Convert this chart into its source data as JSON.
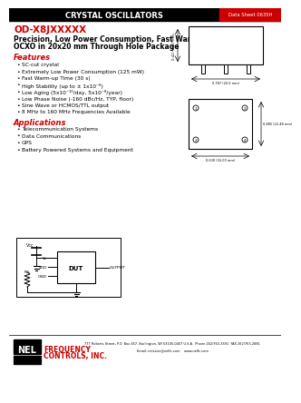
{
  "header_text": "CRYSTAL OSCILLATORS",
  "datasheet_num": "Data Sheet 0635H",
  "header_bg": "#000000",
  "header_red_bg": "#cc0000",
  "part_number": "OD-X8JXXXXX",
  "subtitle_line1": "Precision, Low Power Consumption, Fast Warm-up SC-cut",
  "subtitle_line2": "OCXO in 20x20 mm Through Hole Package",
  "features_title": "Features",
  "features": [
    "SC-cut crystal",
    "Extremely Low Power Consumption (125 mW)",
    "Fast Warm-up Time (30 s)",
    "High Stability (up to ± 1x10⁻⁸)",
    "Low Aging (5x10⁻¹⁰/day, 5x10⁻⁸/year)",
    "Low Phase Noise (-160 dBc/Hz, TYP, floor)",
    "Sine Wave or HCMOS/TTL output",
    "8 MHz to 160 MHz Frequencies Available"
  ],
  "applications_title": "Applications",
  "applications": [
    "Telecommunication Systems",
    "Data Communications",
    "GPS",
    "Battery Powered Systems and Equipment"
  ],
  "company_name_line1": "FREQUENCY",
  "company_name_line2": "CONTROLS, INC.",
  "footer_address": "777 Roberts Street, P.O. Box 457, Burlington, WI 53105-0457 U.S.A.  Phone 262/763-3591  FAX 262/763-2881",
  "footer_email": "Email: nelsales@nelfc.com    www.nelfc.com",
  "bg_color": "#ffffff",
  "text_color": "#000000",
  "red_color": "#cc0000",
  "bullet": "•",
  "pkg_dim_h": "0.42~30.7 mm",
  "pkg_dim_w": "0.787 (20.0 mm)",
  "pkg_dim_bot_w": "0.630 (16.00 mm)",
  "pkg_dim_side": "0.885 (22.48 mm)"
}
